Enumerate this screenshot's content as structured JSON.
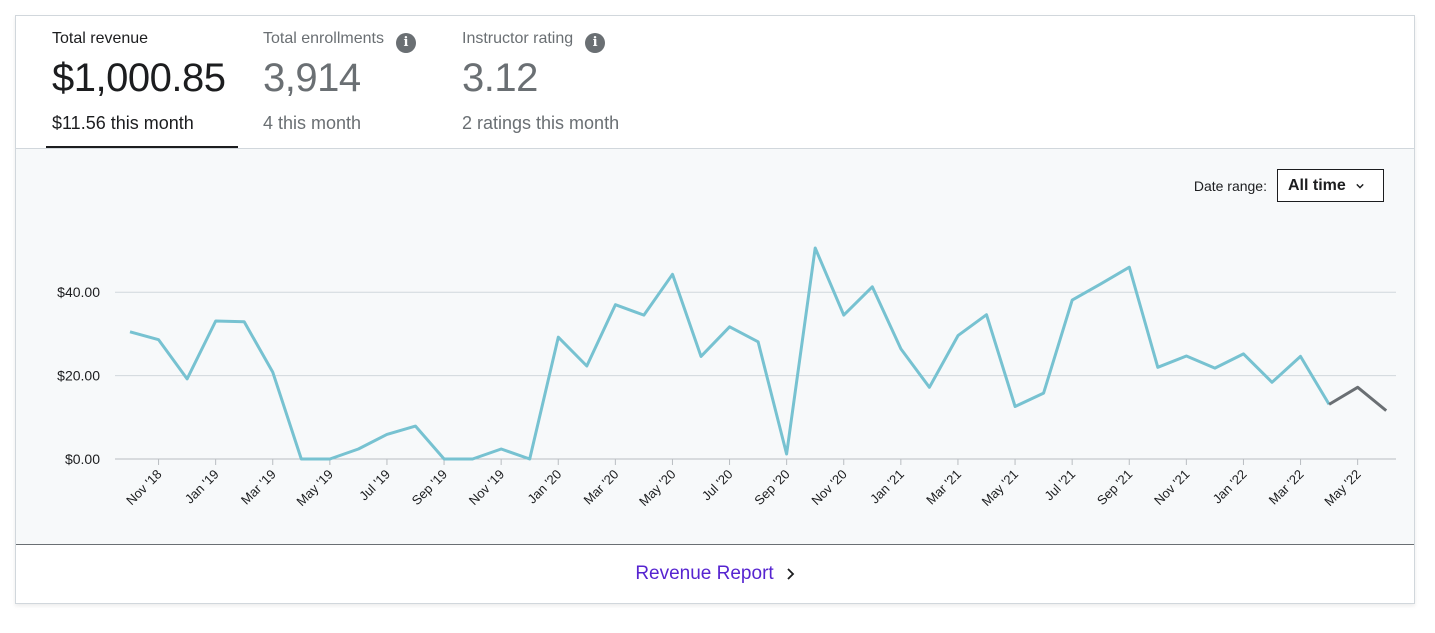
{
  "tabs": [
    {
      "label": "Total revenue",
      "value": "$1,000.85",
      "sub": "$11.56 this month",
      "info": false
    },
    {
      "label": "Total enrollments",
      "value": "3,914",
      "sub": "4 this month",
      "info": true
    },
    {
      "label": "Instructor rating",
      "value": "3.12",
      "sub": "2 ratings this month",
      "info": true
    }
  ],
  "date_range": {
    "label": "Date range:",
    "selected": "All time"
  },
  "footer": {
    "link_label": "Revenue Report"
  },
  "icons": {
    "info": "info-icon",
    "dropdown": "chevron-down-icon",
    "link": "chevron-right-icon"
  },
  "colors": {
    "line": "#77c2d1",
    "current_period": "#6a6f73",
    "active_tab": "#1c1d1f",
    "link": "#5624d0"
  },
  "chart_data": {
    "type": "line",
    "title": "",
    "xlabel": "",
    "ylabel": "",
    "ylim": [
      0,
      50
    ],
    "y_ticks": [
      0,
      20,
      40
    ],
    "y_tick_labels": [
      "$0.00",
      "$20.00",
      "$40.00"
    ],
    "grid": true,
    "x_tick_labels": [
      "Nov '18",
      "Jan '19",
      "Mar '19",
      "May '19",
      "Jul '19",
      "Sep '19",
      "Nov '19",
      "Jan '20",
      "Mar '20",
      "May '20",
      "Jul '20",
      "Sep '20",
      "Nov '20",
      "Jan '21",
      "Mar '21",
      "May '21",
      "Jul '21",
      "Sep '21",
      "Nov '21",
      "Jan '22",
      "Mar '22",
      "May '22"
    ],
    "x": [
      "Oct '18",
      "Nov '18",
      "Dec '18",
      "Jan '19",
      "Feb '19",
      "Mar '19",
      "Apr '19",
      "May '19",
      "Jun '19",
      "Jul '19",
      "Aug '19",
      "Sep '19",
      "Oct '19",
      "Nov '19",
      "Dec '19",
      "Jan '20",
      "Feb '20",
      "Mar '20",
      "Apr '20",
      "May '20",
      "Jun '20",
      "Jul '20",
      "Aug '20",
      "Sep '20",
      "Oct '20",
      "Nov '20",
      "Dec '20",
      "Jan '21",
      "Feb '21",
      "Mar '21",
      "Apr '21",
      "May '21",
      "Jun '21",
      "Jul '21",
      "Aug '21",
      "Sep '21",
      "Oct '21",
      "Nov '21",
      "Dec '21",
      "Jan '22",
      "Feb '22",
      "Mar '22",
      "Apr '22",
      "May '22",
      "Jun '22"
    ],
    "series": [
      {
        "values": [
          30.5,
          28.6,
          19.2,
          33.1,
          32.9,
          20.8,
          0.0,
          0.0,
          2.4,
          5.9,
          7.9,
          0.0,
          0.0,
          2.4,
          0.0,
          29.2,
          22.3,
          37.0,
          34.5,
          44.3,
          24.6,
          31.7,
          28.1,
          1.2,
          50.6,
          34.5,
          41.3,
          26.4,
          17.2,
          29.6,
          34.6,
          12.6,
          15.8,
          38.1,
          42.0,
          46.0,
          22.0,
          24.7,
          21.8,
          25.2,
          18.4,
          24.6,
          13.1,
          17.2,
          11.6
        ]
      }
    ],
    "highlight_from_index": 42
  }
}
